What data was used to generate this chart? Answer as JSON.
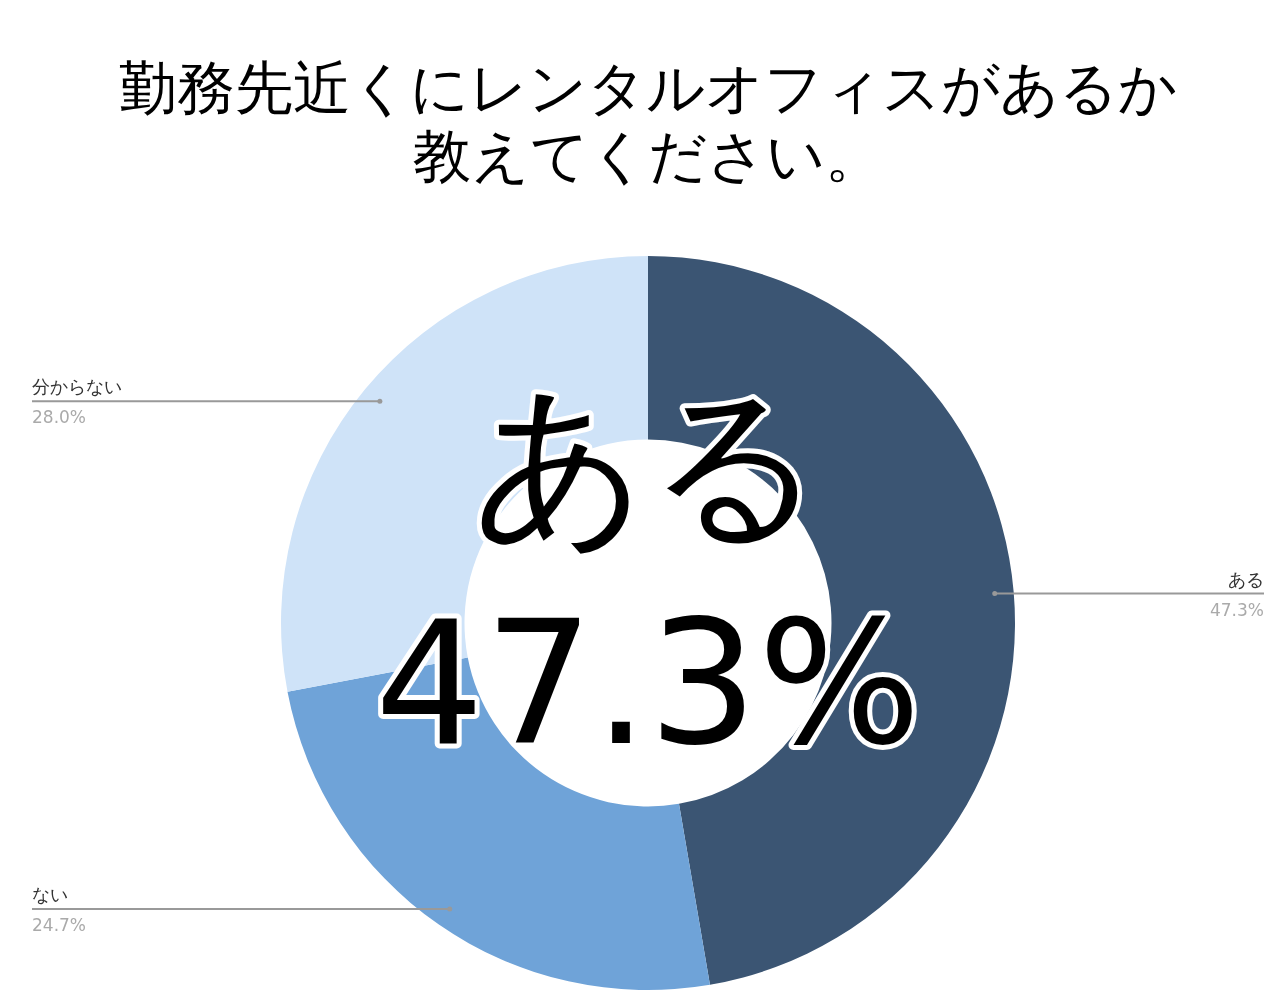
{
  "chart_data": {
    "type": "donut",
    "title": "勤務先近くにレンタルオフィスがあるか教えてください。",
    "categories": [
      "ある",
      "ない",
      "分からない"
    ],
    "values": [
      47.3,
      24.7,
      28.0
    ],
    "colors": [
      "#3b5573",
      "#6fa3d8",
      "#cfe3f8"
    ],
    "value_labels": [
      "47.3%",
      "24.7%",
      "28.0%"
    ],
    "annotations": [
      "ある",
      "47.3%"
    ]
  }
}
